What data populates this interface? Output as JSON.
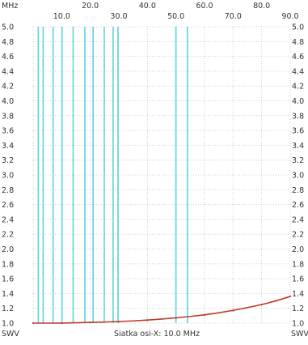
{
  "chart_data": {
    "type": "line",
    "unit_label": "MHz",
    "y_axis_name": "SWV",
    "xlabel": "Siatka osi-X: 10.0 MHz",
    "xlim": [
      0.0,
      90.0
    ],
    "ylim": [
      1.0,
      5.0
    ],
    "x_ticks_top_row": [
      "20.0",
      "40.0",
      "60.0",
      "80.0"
    ],
    "x_ticks_bottom_row": [
      "10.0",
      "30.0",
      "50.0",
      "70.0",
      "90.0"
    ],
    "y_ticks": [
      "5.0",
      "4.8",
      "4.6",
      "4.4",
      "4.2",
      "4.0",
      "3.8",
      "3.6",
      "3.4",
      "3.2",
      "3.0",
      "2.8",
      "2.6",
      "2.4",
      "2.2",
      "2.0",
      "1.8",
      "1.6",
      "1.4",
      "1.2",
      "1.0"
    ],
    "y_tick_values": [
      5.0,
      4.8,
      4.6,
      4.4,
      4.2,
      4.0,
      3.8,
      3.6,
      3.4,
      3.2,
      3.0,
      2.8,
      2.6,
      2.4,
      2.2,
      2.0,
      1.8,
      1.6,
      1.4,
      1.2,
      1.0
    ],
    "marker_lines_x": [
      1.8,
      3.5,
      7.0,
      10.1,
      14.0,
      18.1,
      21.0,
      24.9,
      28.0,
      29.7,
      50.0,
      54.0
    ],
    "series": [
      {
        "x": [
          0,
          10,
          20,
          30,
          40,
          50,
          60,
          70,
          80,
          85,
          90
        ],
        "y": [
          1.0,
          1.0,
          1.01,
          1.02,
          1.04,
          1.07,
          1.11,
          1.17,
          1.25,
          1.3,
          1.36
        ]
      }
    ],
    "colors": {
      "background": "#ffffff",
      "grid": "#cfcfcf",
      "marker_lines": "#5fd3de",
      "series": "#c0392b",
      "text": "#333333"
    }
  }
}
